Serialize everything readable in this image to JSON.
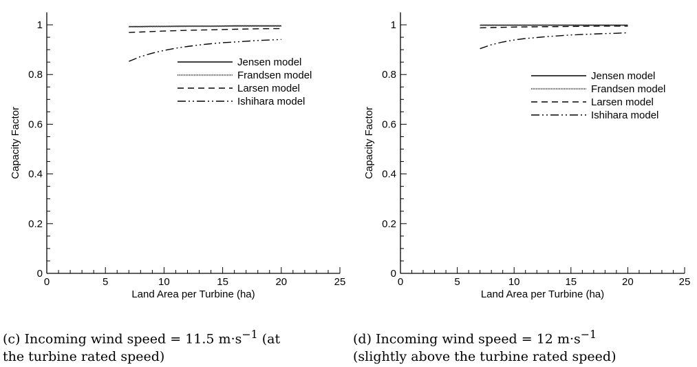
{
  "chart_data": [
    {
      "type": "line",
      "panel_id": "c",
      "xlabel": "Land Area per Turbine (ha)",
      "ylabel": "Capacity Factor",
      "xlim": [
        0,
        25
      ],
      "ylim": [
        0,
        1.05
      ],
      "xticks": [
        0,
        5,
        10,
        15,
        20,
        25
      ],
      "yticks": [
        0,
        0.2,
        0.4,
        0.6,
        0.8,
        1
      ],
      "xtick_labels": [
        "0",
        "5",
        "10",
        "15",
        "20",
        "25"
      ],
      "ytick_labels": [
        "0",
        "0.2",
        "0.4",
        "0.6",
        "0.8",
        "1"
      ],
      "grid": false,
      "legend_position": "upper-right",
      "series": [
        {
          "name": "Jensen model",
          "style": "solid",
          "x": [
            7,
            8,
            9,
            10,
            12,
            14,
            16,
            18,
            20
          ],
          "y": [
            0.993,
            0.993,
            0.994,
            0.994,
            0.995,
            0.995,
            0.996,
            0.996,
            0.996
          ]
        },
        {
          "name": "Frandsen model",
          "style": "dotted",
          "x": [
            7,
            8,
            9,
            10,
            12,
            14,
            16,
            18,
            20
          ],
          "y": [
            0.992,
            0.992,
            0.993,
            0.993,
            0.994,
            0.994,
            0.995,
            0.995,
            0.995
          ]
        },
        {
          "name": "Larsen model",
          "style": "dashed",
          "x": [
            7,
            8,
            9,
            10,
            12,
            14,
            16,
            18,
            20
          ],
          "y": [
            0.969,
            0.971,
            0.973,
            0.975,
            0.978,
            0.98,
            0.982,
            0.984,
            0.985
          ]
        },
        {
          "name": "Ishihara model",
          "style": "dashdotdot",
          "x": [
            7,
            8,
            9,
            10,
            11,
            12,
            13,
            14,
            15,
            16,
            17,
            18,
            19,
            20
          ],
          "y": [
            0.853,
            0.872,
            0.886,
            0.897,
            0.906,
            0.913,
            0.919,
            0.924,
            0.928,
            0.931,
            0.934,
            0.937,
            0.939,
            0.941
          ]
        }
      ]
    },
    {
      "type": "line",
      "panel_id": "d",
      "xlabel": "Land Area per Turbine (ha)",
      "ylabel": "Capacity Factor",
      "xlim": [
        0,
        25
      ],
      "ylim": [
        0,
        1.05
      ],
      "xticks": [
        0,
        5,
        10,
        15,
        20,
        25
      ],
      "yticks": [
        0,
        0.2,
        0.4,
        0.6,
        0.8,
        1
      ],
      "xtick_labels": [
        "0",
        "5",
        "10",
        "15",
        "20",
        "25"
      ],
      "ytick_labels": [
        "0",
        "0.2",
        "0.4",
        "0.6",
        "0.8",
        "1"
      ],
      "grid": false,
      "legend_position": "upper-right",
      "series": [
        {
          "name": "Jensen model",
          "style": "solid",
          "x": [
            7,
            8,
            9,
            10,
            12,
            14,
            16,
            18,
            20
          ],
          "y": [
            0.999,
            0.999,
            0.999,
            0.999,
            0.999,
            0.999,
            0.999,
            0.999,
            0.999
          ]
        },
        {
          "name": "Frandsen model",
          "style": "dotted",
          "x": [
            7,
            8,
            9,
            10,
            12,
            14,
            16,
            18,
            20
          ],
          "y": [
            0.998,
            0.998,
            0.998,
            0.998,
            0.998,
            0.998,
            0.998,
            0.998,
            0.998
          ]
        },
        {
          "name": "Larsen model",
          "style": "dashed",
          "x": [
            7,
            8,
            9,
            10,
            12,
            14,
            16,
            18,
            20
          ],
          "y": [
            0.988,
            0.989,
            0.99,
            0.991,
            0.992,
            0.993,
            0.994,
            0.995,
            0.995
          ]
        },
        {
          "name": "Ishihara model",
          "style": "dashdotdot",
          "x": [
            7,
            8,
            9,
            10,
            11,
            12,
            13,
            14,
            15,
            16,
            17,
            18,
            19,
            20
          ],
          "y": [
            0.904,
            0.92,
            0.931,
            0.939,
            0.945,
            0.949,
            0.953,
            0.956,
            0.959,
            0.961,
            0.963,
            0.965,
            0.966,
            0.968
          ]
        }
      ]
    }
  ],
  "captions": [
    {
      "line1": "(c) Incoming wind speed = 11.5 m·s",
      "line1_sup": "−1",
      "line1_tail": " (at",
      "line2": "the turbine rated speed)"
    },
    {
      "line1": "(d)  Incoming   wind   speed   =   12 m·s",
      "line1_sup": "−1",
      "line1_tail": "",
      "line2": "(slightly above the turbine rated speed)"
    }
  ]
}
